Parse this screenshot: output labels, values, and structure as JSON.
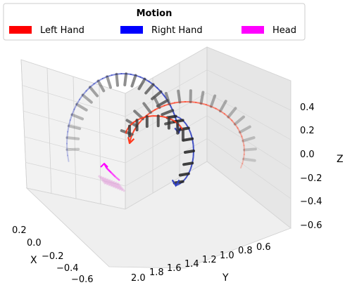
{
  "chart_data": {
    "type": "3d-line",
    "legend": {
      "title": "Motion",
      "placement": "top",
      "entries": [
        {
          "label": "Left Hand",
          "color": "#ff0000"
        },
        {
          "label": "Right Hand",
          "color": "#0000ff"
        },
        {
          "label": "Head",
          "color": "#ff00ff"
        }
      ]
    },
    "axes": {
      "x": {
        "label": "X",
        "ticks": [
          "0.2",
          "0.0",
          "−0.2",
          "−0.4",
          "−0.6"
        ],
        "range": [
          -0.6,
          0.3
        ]
      },
      "y": {
        "label": "Y",
        "ticks": [
          "2.0",
          "1.8",
          "1.6",
          "1.4",
          "1.2",
          "1.0",
          "0.8",
          "0.6"
        ],
        "range": [
          0.6,
          2.0
        ]
      },
      "z": {
        "label": "Z",
        "ticks": [
          "0.4",
          "0.2",
          "0.0",
          "−0.2",
          "−0.4",
          "−0.6"
        ],
        "range": [
          -0.6,
          0.5
        ]
      }
    },
    "grid": true,
    "series": [
      {
        "name": "Left Hand",
        "color": "#ff3b1f",
        "faded_color": "#ff9f80",
        "rung_color": "#555555",
        "description_points": [
          [
            0.2,
            1.0,
            -0.3
          ],
          [
            0.1,
            0.9,
            0.05
          ],
          [
            -0.1,
            1.0,
            0.35
          ],
          [
            -0.2,
            1.25,
            0.4
          ],
          [
            -0.15,
            1.55,
            0.25
          ],
          [
            0.0,
            1.75,
            0.05
          ],
          [
            0.1,
            1.85,
            -0.05
          ]
        ]
      },
      {
        "name": "Right Hand",
        "color": "#3040c0",
        "faded_color": "#9aa0d8",
        "rung_color": "#333333",
        "description_points": [
          [
            -0.1,
            2.0,
            -0.3
          ],
          [
            -0.2,
            1.95,
            0.1
          ],
          [
            -0.3,
            1.7,
            0.35
          ],
          [
            -0.35,
            1.35,
            0.4
          ],
          [
            -0.3,
            1.05,
            0.25
          ],
          [
            -0.2,
            0.95,
            0.05
          ],
          [
            -0.1,
            1.1,
            -0.15
          ]
        ]
      },
      {
        "name": "Head",
        "color": "#ff00ff",
        "faded_color": "#e090d8",
        "description_points": [
          [
            -0.3,
            1.9,
            -0.2
          ],
          [
            -0.32,
            1.8,
            -0.25
          ],
          [
            -0.35,
            1.7,
            -0.27
          ]
        ]
      }
    ]
  }
}
